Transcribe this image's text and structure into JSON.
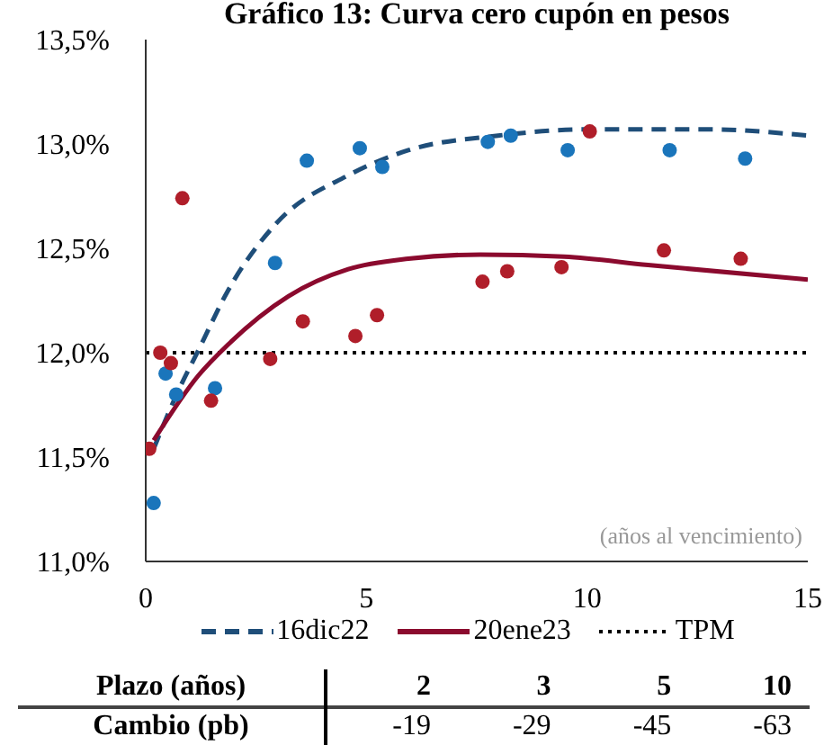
{
  "chart_data": {
    "type": "scatter",
    "title": "Gráfico 13: Curva cero cupón en pesos",
    "xlim": [
      0,
      15
    ],
    "xticks": [
      0,
      5,
      10,
      15
    ],
    "ylim": [
      11.0,
      13.5
    ],
    "yticks": [
      {
        "value": 11.0,
        "label": "11,0%"
      },
      {
        "value": 11.5,
        "label": "11,5%"
      },
      {
        "value": 12.0,
        "label": "12,0%"
      },
      {
        "value": 12.5,
        "label": "12,5%"
      },
      {
        "value": 13.0,
        "label": "13,0%"
      },
      {
        "value": 13.5,
        "label": "13,5%"
      }
    ],
    "grid": false,
    "legend": "bottom",
    "series": [
      {
        "marker": "circle",
        "color": "#1a75bb",
        "x": [
          0.18,
          0.45,
          0.69,
          1.57,
          2.93,
          3.65,
          4.85,
          5.36,
          7.75,
          8.27,
          9.56,
          11.87,
          13.58
        ],
        "values": [
          11.28,
          11.9,
          11.8,
          11.83,
          12.43,
          12.92,
          12.98,
          12.89,
          13.01,
          13.04,
          12.97,
          12.97,
          12.93
        ]
      },
      {
        "marker": "circle",
        "color": "#b01e2a",
        "x": [
          0.08,
          0.33,
          0.57,
          0.83,
          1.48,
          2.82,
          3.56,
          4.75,
          5.24,
          7.63,
          8.19,
          9.42,
          10.06,
          11.74,
          13.48
        ],
        "values": [
          11.54,
          12.0,
          11.95,
          12.74,
          11.77,
          11.97,
          12.15,
          12.08,
          12.18,
          12.34,
          12.39,
          12.41,
          13.06,
          12.49,
          12.45
        ]
      },
      {
        "type": "line",
        "name": "16dic22",
        "line_style": "dashed",
        "color": "#1f4e79",
        "x": [
          0.18,
          0.7,
          1.19,
          1.87,
          2.96,
          4.59,
          5.95,
          7.98,
          10.0,
          12.72,
          15
        ],
        "values": [
          11.54,
          11.8,
          12.01,
          12.3,
          12.62,
          12.85,
          12.97,
          13.04,
          13.07,
          13.07,
          13.04
        ]
      },
      {
        "type": "line",
        "name": "20ene23",
        "line_style": "solid",
        "color": "#8b0a2e",
        "x": [
          0.18,
          1.19,
          1.87,
          3.23,
          4.59,
          5.95,
          7.58,
          9.48,
          11.38,
          15
        ],
        "values": [
          11.58,
          11.89,
          12.04,
          12.27,
          12.4,
          12.45,
          12.47,
          12.46,
          12.42,
          12.35
        ]
      }
    ],
    "ref_lines": [
      {
        "axis": "y",
        "value": 12.0,
        "label": "TPM",
        "color": "#000000",
        "line_style": "dotted"
      }
    ],
    "annotations": [
      "(años al vencimiento)",
      "Plazo (años)",
      "2",
      "3",
      "5",
      "10",
      "Cambio (pb)",
      "-19",
      "-29",
      "-45",
      "-63"
    ]
  }
}
